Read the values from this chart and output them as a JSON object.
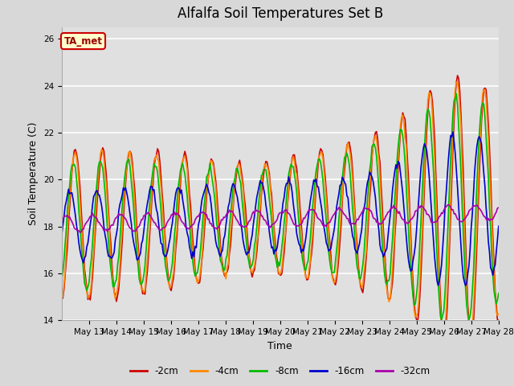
{
  "title": "Alfalfa Soil Temperatures Set B",
  "xlabel": "Time",
  "ylabel": "Soil Temperature (C)",
  "ylim": [
    14,
    26.5
  ],
  "xtick_labels": [
    "May 13",
    "May 14",
    "May 15",
    "May 16",
    "May 17",
    "May 18",
    "May 19",
    "May 20",
    "May 21",
    "May 22",
    "May 23",
    "May 24",
    "May 25",
    "May 26",
    "May 27",
    "May 28"
  ],
  "series_colors": {
    "-2cm": "#cc0000",
    "-4cm": "#ff8800",
    "-8cm": "#00bb00",
    "-16cm": "#0000cc",
    "-32cm": "#aa00aa"
  },
  "legend_label": "TA_met",
  "legend_box_facecolor": "#ffffcc",
  "legend_box_edgecolor": "#cc0000",
  "fig_facecolor": "#d8d8d8",
  "plot_bg_color": "#e0e0e0",
  "grid_color": "#ffffff",
  "title_fontsize": 12,
  "axis_fontsize": 9,
  "tick_fontsize": 7.5
}
